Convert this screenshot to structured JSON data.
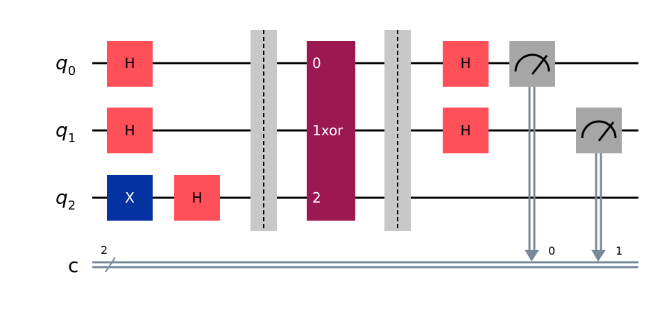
{
  "wires": {
    "q0": {
      "name": "q",
      "sub": "0"
    },
    "q1": {
      "name": "q",
      "sub": "1"
    },
    "q2": {
      "name": "q",
      "sub": "2"
    },
    "c": {
      "name": "c",
      "width": "2"
    }
  },
  "gates": {
    "h_q0": "H",
    "h_q1": "H",
    "x_q2": "X",
    "h_q2": "H",
    "oracle": {
      "pin0": "0",
      "pin1": "1xor",
      "pin2": "2"
    },
    "h2_q0": "H",
    "h2_q1": "H"
  },
  "measure_bits": {
    "m0": "0",
    "m1": "1"
  },
  "colors": {
    "hadamard": "#ff4f59",
    "x_gate": "#0432a0",
    "oracle": "#9b1851",
    "barrier": "#c8c8c8",
    "measure": "#a6a6a6",
    "classical": "#778899"
  }
}
